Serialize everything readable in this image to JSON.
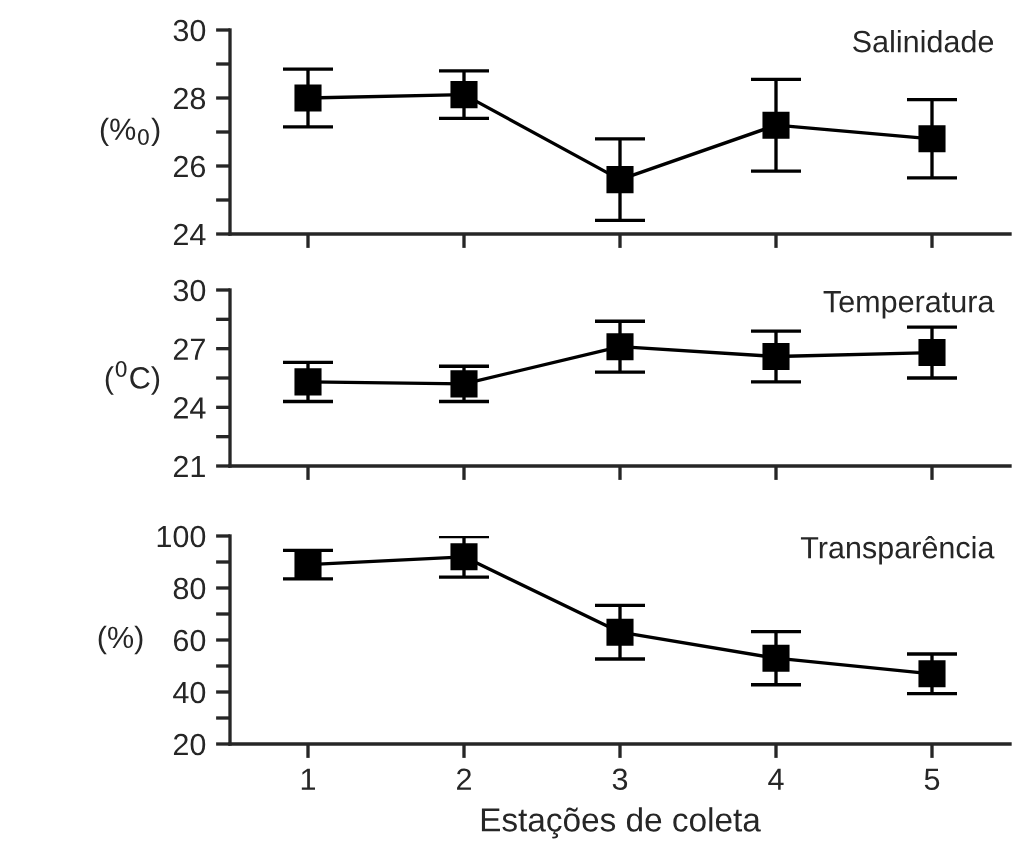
{
  "chart_data": [
    {
      "type": "line",
      "x": [
        1,
        2,
        3,
        4,
        5
      ],
      "values": [
        28.0,
        28.1,
        25.6,
        27.2,
        26.8
      ],
      "errors": [
        0.85,
        0.7,
        1.2,
        1.35,
        1.15
      ],
      "color": "#000000",
      "marker": "square",
      "line_style": "solid",
      "ylabel": "(%$_{0}$)",
      "annotations": [
        "Salinidade"
      ],
      "xlim": [
        0.5,
        5.5
      ],
      "xticks": [
        {
          "value": 1,
          "label": null
        },
        {
          "value": 2,
          "label": null
        },
        {
          "value": 3,
          "label": null
        },
        {
          "value": 4,
          "label": null
        },
        {
          "value": 5,
          "label": null
        }
      ],
      "ylim": [
        24,
        30
      ],
      "yticks": [
        24,
        {
          "value": 25,
          "label": null
        },
        26,
        {
          "value": 27,
          "label": null
        },
        28,
        {
          "value": 29,
          "label": null
        },
        30
      ],
      "tick_labels": "y",
      "grid": false
    },
    {
      "type": "line",
      "x": [
        1,
        2,
        3,
        4,
        5
      ],
      "values": [
        25.3,
        25.2,
        27.1,
        26.6,
        26.8
      ],
      "errors": [
        1.0,
        0.9,
        1.3,
        1.3,
        1.3
      ],
      "color": "#000000",
      "marker": "square",
      "line_style": "solid",
      "ylabel": "($^{0}$C)",
      "annotations": [
        "Temperatura"
      ],
      "xlim": [
        0.5,
        5.5
      ],
      "xticks": [
        {
          "value": 1,
          "label": null
        },
        {
          "value": 2,
          "label": null
        },
        {
          "value": 3,
          "label": null
        },
        {
          "value": 4,
          "label": null
        },
        {
          "value": 5,
          "label": null
        }
      ],
      "ylim": [
        21,
        30
      ],
      "yticks": [
        21,
        {
          "value": 22.5,
          "label": null
        },
        24,
        {
          "value": 25.5,
          "label": null
        },
        27,
        {
          "value": 28.5,
          "label": null
        },
        30
      ],
      "tick_labels": "y",
      "grid": false
    },
    {
      "type": "line",
      "x": [
        1,
        2,
        3,
        4,
        5
      ],
      "values": [
        89,
        92,
        63,
        53,
        47
      ],
      "errors": [
        5.5,
        7.8,
        10.3,
        10.2,
        7.6
      ],
      "color": "#000000",
      "marker": "square",
      "line_style": "solid",
      "ylabel": "(%)",
      "xlabel": "Estações de coleta",
      "annotations": [
        "Transparência"
      ],
      "xlim": [
        0.5,
        5.5
      ],
      "xticks": [
        1,
        2,
        3,
        4,
        5
      ],
      "ylim": [
        20,
        100
      ],
      "yticks": [
        20,
        {
          "value": 30,
          "label": null
        },
        40,
        {
          "value": 50,
          "label": null
        },
        60,
        {
          "value": 70,
          "label": null
        },
        80,
        {
          "value": 90,
          "label": null
        },
        100
      ],
      "grid": false
    }
  ]
}
